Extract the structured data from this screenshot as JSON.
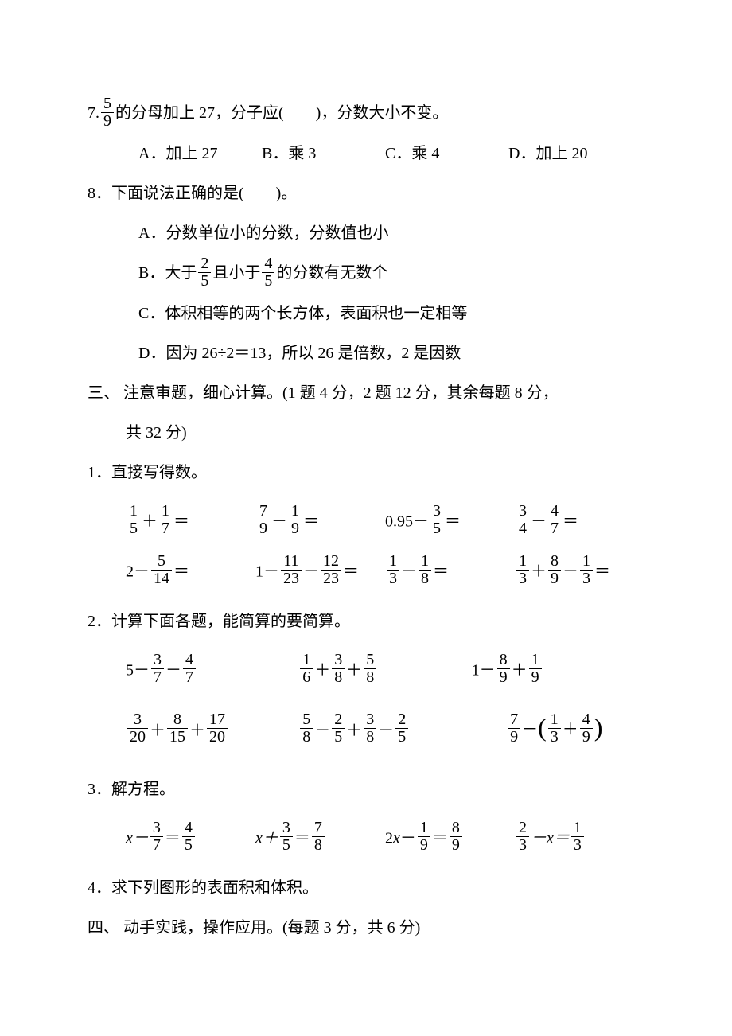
{
  "q7": {
    "stem_before": "7.",
    "frac_num": "5",
    "frac_den": "9",
    "stem_after": "的分母加上 27，分子应(　　)，分数大小不变。",
    "optA": "A．加上 27",
    "optB": "B．乘 3",
    "optC": "C．乘 4",
    "optD": "D．加上 20"
  },
  "q8": {
    "stem": "8．下面说法正确的是(　　)。",
    "optA": "A．分数单位小的分数，分数值也小",
    "optB_before": "B．大于",
    "optB_f1n": "2",
    "optB_f1d": "5",
    "optB_mid": "且小于",
    "optB_f2n": "4",
    "optB_f2d": "5",
    "optB_after": "的分数有无数个",
    "optC": "C．体积相等的两个长方体，表面积也一定相等",
    "optD": "D．因为 26÷2＝13，所以 26 是倍数，2 是因数"
  },
  "sec3": {
    "title_a": "三、 注意审题，细心计算。(1 题 4 分，2 题 12 分，其余每题 8 分，",
    "title_b": "共 32 分)",
    "p1": "1．直接写得数。",
    "r1": {
      "a_f1n": "1",
      "a_f1d": "5",
      "a_op": "＋",
      "a_f2n": "1",
      "a_f2d": "7",
      "a_eq": "＝",
      "b_f1n": "7",
      "b_f1d": "9",
      "b_op": "－",
      "b_f2n": "1",
      "b_f2d": "9",
      "b_eq": "＝",
      "c_before": "0.95－",
      "c_fn": "3",
      "c_fd": "5",
      "c_eq": "＝",
      "d_f1n": "3",
      "d_f1d": "4",
      "d_op": "－",
      "d_f2n": "4",
      "d_f2d": "7",
      "d_eq": "＝"
    },
    "r2": {
      "a_before": "2－",
      "a_fn": "5",
      "a_fd": "14",
      "a_eq": "＝",
      "b_before": "1－",
      "b_f1n": "11",
      "b_f1d": "23",
      "b_op": "－",
      "b_f2n": "12",
      "b_f2d": "23",
      "b_eq": "＝",
      "c_f1n": "1",
      "c_f1d": "3",
      "c_op": "－",
      "c_f2n": "1",
      "c_f2d": "8",
      "c_eq": "＝",
      "d_f1n": "1",
      "d_f1d": "3",
      "d_op1": "＋",
      "d_f2n": "8",
      "d_f2d": "9",
      "d_op2": "－",
      "d_f3n": "1",
      "d_f3d": "3",
      "d_eq": "＝"
    },
    "p2": "2．计算下面各题，能简算的要简算。",
    "r3": {
      "a_before": "5－",
      "a_f1n": "3",
      "a_f1d": "7",
      "a_op": "－",
      "a_f2n": "4",
      "a_f2d": "7",
      "b_f1n": "1",
      "b_f1d": "6",
      "b_op1": "＋",
      "b_f2n": "3",
      "b_f2d": "8",
      "b_op2": "＋",
      "b_f3n": "5",
      "b_f3d": "8",
      "c_before": "1－",
      "c_f1n": "8",
      "c_f1d": "9",
      "c_op": "＋",
      "c_f2n": "1",
      "c_f2d": "9"
    },
    "r4": {
      "a_f1n": "3",
      "a_f1d": "20",
      "a_op1": "＋",
      "a_f2n": "8",
      "a_f2d": "15",
      "a_op2": "＋",
      "a_f3n": "17",
      "a_f3d": "20",
      "b_f1n": "5",
      "b_f1d": "8",
      "b_op1": "－",
      "b_f2n": "2",
      "b_f2d": "5",
      "b_op2": "＋",
      "b_f3n": "3",
      "b_f3d": "8",
      "b_op3": "－",
      "b_f4n": "2",
      "b_f4d": "5",
      "c_f1n": "7",
      "c_f1d": "9",
      "c_op": "－",
      "c_lp": "(",
      "c_f2n": "1",
      "c_f2d": "3",
      "c_mid": "＋",
      "c_f3n": "4",
      "c_f3d": "9",
      "c_rp": ")"
    },
    "p3": "3．解方程。",
    "r5": {
      "a_x": "x－",
      "a_f1n": "3",
      "a_f1d": "7",
      "a_eq": "＝",
      "a_f2n": "4",
      "a_f2d": "5",
      "b_x": "x＋",
      "b_f1n": "3",
      "b_f1d": "5",
      "b_eq": "＝",
      "b_f2n": "7",
      "b_f2d": "8",
      "c_x": "2x－",
      "c_f1n": "1",
      "c_f1d": "9",
      "c_eq": "＝",
      "c_f2n": "8",
      "c_f2d": "9",
      "d_f1n": "2",
      "d_f1d": "3",
      "d_mid": "－x＝",
      "d_f2n": "1",
      "d_f2d": "3"
    },
    "p4": "4．求下列图形的表面积和体积。"
  },
  "sec4": {
    "title": "四、 动手实践，操作应用。(每题 3 分，共 6 分)"
  }
}
